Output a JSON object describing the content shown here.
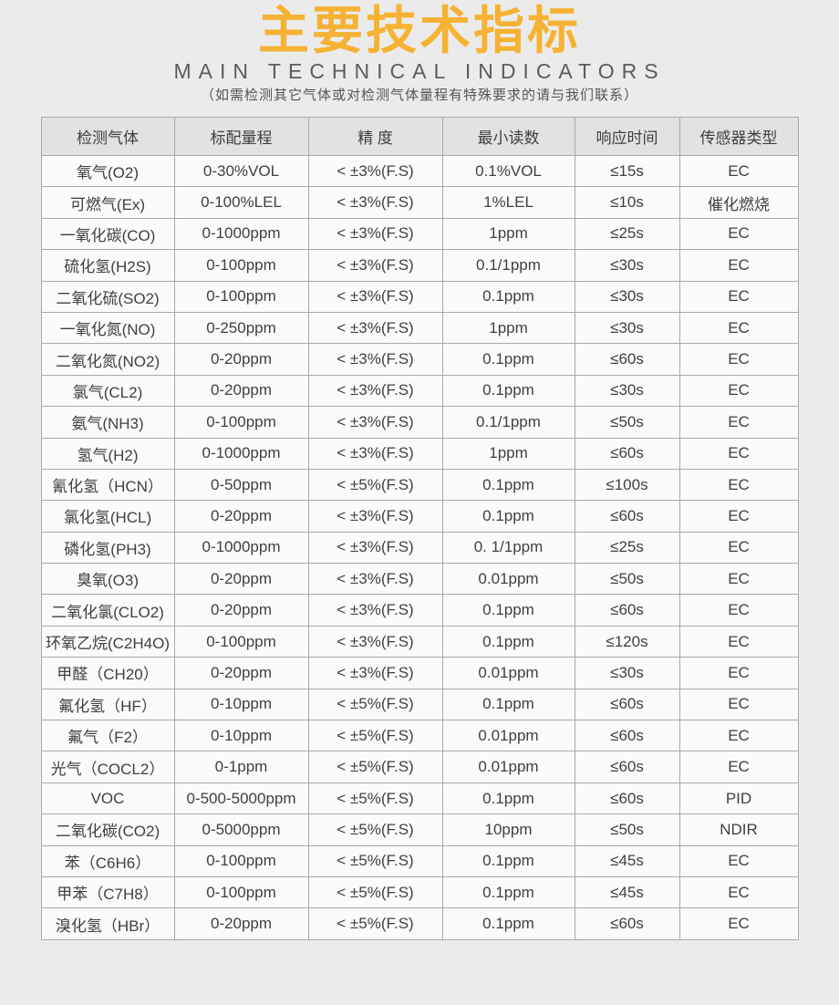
{
  "page": {
    "title": "主要技术指标",
    "subtitle": "MAIN TECHNICAL INDICATORS",
    "note": "（如需检测其它气体或对检测气体量程有特殊要求的请与我们联系）"
  },
  "colors": {
    "title_accent": "#F6B233",
    "background": "#EBEBEB",
    "header_bg": "#E2E2E2",
    "row_bg": "#FBFBFB",
    "border": "#A9A9A9",
    "text": "#404040"
  },
  "table": {
    "headers": [
      "检测气体",
      "标配量程",
      "精  度",
      "最小读数",
      "响应时间",
      "传感器类型"
    ],
    "rows": [
      [
        "氧气(O2)",
        "0-30%VOL",
        "< ±3%(F.S)",
        "0.1%VOL",
        "≤15s",
        "EC"
      ],
      [
        "可燃气(Ex)",
        "0-100%LEL",
        "< ±3%(F.S)",
        "1%LEL",
        "≤10s",
        "催化燃烧"
      ],
      [
        "一氧化碳(CO)",
        "0-1000ppm",
        "< ±3%(F.S)",
        "1ppm",
        "≤25s",
        "EC"
      ],
      [
        "硫化氢(H2S)",
        "0-100ppm",
        "< ±3%(F.S)",
        "0.1/1ppm",
        "≤30s",
        "EC"
      ],
      [
        "二氧化硫(SO2)",
        "0-100ppm",
        "< ±3%(F.S)",
        "0.1ppm",
        "≤30s",
        "EC"
      ],
      [
        "一氧化氮(NO)",
        "0-250ppm",
        "< ±3%(F.S)",
        "1ppm",
        "≤30s",
        "EC"
      ],
      [
        "二氧化氮(NO2)",
        "0-20ppm",
        "< ±3%(F.S)",
        "0.1ppm",
        "≤60s",
        "EC"
      ],
      [
        "氯气(CL2)",
        "0-20ppm",
        "< ±3%(F.S)",
        "0.1ppm",
        "≤30s",
        "EC"
      ],
      [
        "氨气(NH3)",
        "0-100ppm",
        "< ±3%(F.S)",
        "0.1/1ppm",
        "≤50s",
        "EC"
      ],
      [
        "氢气(H2)",
        "0-1000ppm",
        "< ±3%(F.S)",
        "1ppm",
        "≤60s",
        "EC"
      ],
      [
        "氰化氢（HCN）",
        "0-50ppm",
        "< ±5%(F.S)",
        "0.1ppm",
        "≤100s",
        "EC"
      ],
      [
        "氯化氢(HCL)",
        "0-20ppm",
        "< ±3%(F.S)",
        "0.1ppm",
        "≤60s",
        "EC"
      ],
      [
        "磷化氢(PH3)",
        "0-1000ppm",
        "< ±3%(F.S)",
        "0. 1/1ppm",
        "≤25s",
        "EC"
      ],
      [
        "臭氧(O3)",
        "0-20ppm",
        "< ±3%(F.S)",
        "0.01ppm",
        "≤50s",
        "EC"
      ],
      [
        "二氧化氯(CLO2)",
        "0-20ppm",
        "< ±3%(F.S)",
        "0.1ppm",
        "≤60s",
        "EC"
      ],
      [
        "环氧乙烷(C2H4O)",
        "0-100ppm",
        "< ±3%(F.S)",
        "0.1ppm",
        "≤120s",
        "EC"
      ],
      [
        "甲醛（CH20）",
        "0-20ppm",
        "< ±3%(F.S)",
        "0.01ppm",
        "≤30s",
        "EC"
      ],
      [
        "氟化氢（HF）",
        "0-10ppm",
        "< ±5%(F.S)",
        "0.1ppm",
        "≤60s",
        "EC"
      ],
      [
        "氟气（F2）",
        "0-10ppm",
        "< ±5%(F.S)",
        "0.01ppm",
        "≤60s",
        "EC"
      ],
      [
        "光气（COCL2）",
        "0-1ppm",
        "< ±5%(F.S)",
        "0.01ppm",
        "≤60s",
        "EC"
      ],
      [
        "VOC",
        "0-500-5000ppm",
        "< ±5%(F.S)",
        "0.1ppm",
        "≤60s",
        "PID"
      ],
      [
        "二氧化碳(CO2)",
        "0-5000ppm",
        "< ±5%(F.S)",
        "10ppm",
        "≤50s",
        "NDIR"
      ],
      [
        "苯（C6H6）",
        "0-100ppm",
        "< ±5%(F.S)",
        "0.1ppm",
        "≤45s",
        "EC"
      ],
      [
        "甲苯（C7H8）",
        "0-100ppm",
        "< ±5%(F.S)",
        "0.1ppm",
        "≤45s",
        "EC"
      ],
      [
        "溴化氢（HBr）",
        "0-20ppm",
        "< ±5%(F.S)",
        "0.1ppm",
        "≤60s",
        "EC"
      ]
    ]
  }
}
